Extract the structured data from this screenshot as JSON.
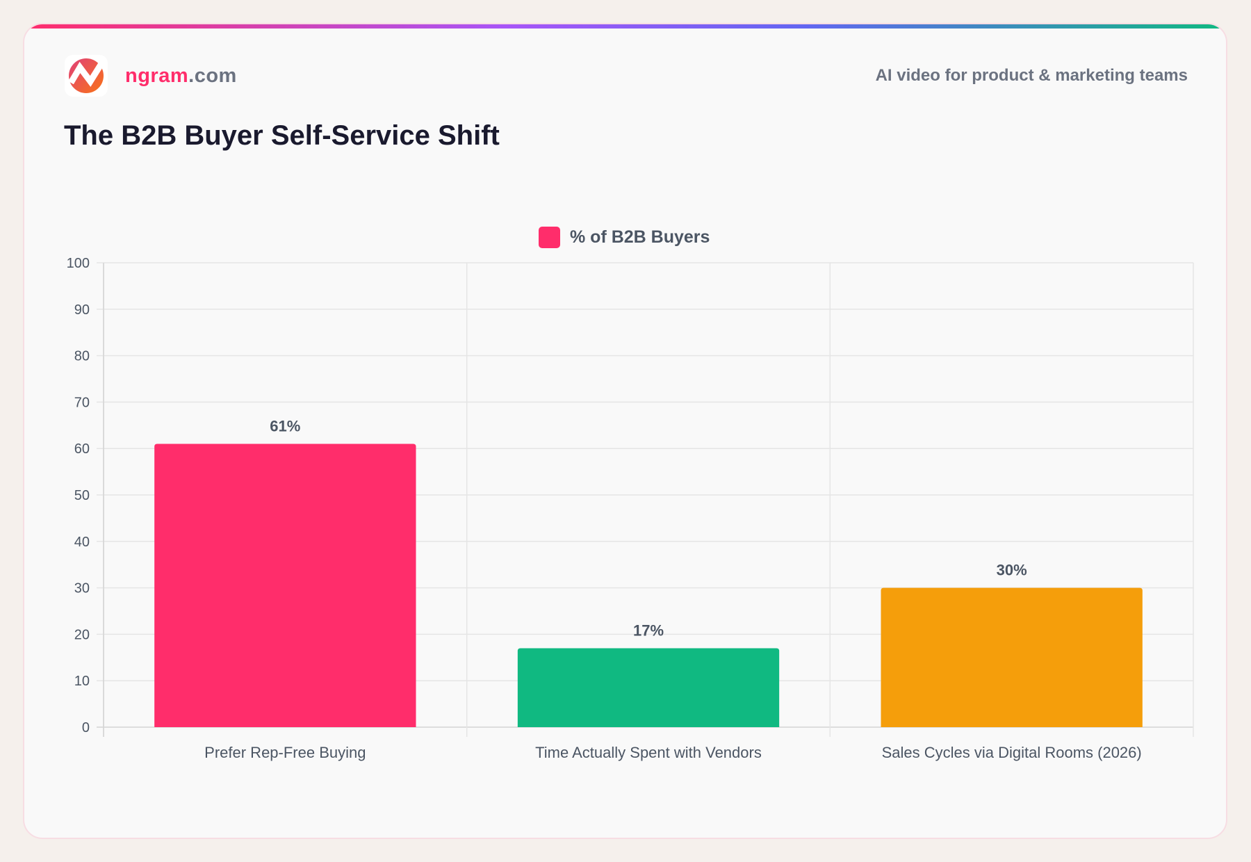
{
  "header": {
    "brand_main": "ngram",
    "brand_suffix": ".com",
    "tagline": "AI video for product & marketing teams",
    "title": "The B2B Buyer Self-Service Shift"
  },
  "chart_data": {
    "type": "bar",
    "categories": [
      "Prefer Rep-Free Buying",
      "Time Actually Spent with Vendors",
      "Sales Cycles via Digital Rooms (2026)"
    ],
    "series": [
      {
        "name": "% of B2B Buyers",
        "values": [
          61,
          17,
          30
        ]
      }
    ],
    "data_labels": [
      "61%",
      "17%",
      "30%"
    ],
    "bar_colors": [
      "#ff2d6b",
      "#10b981",
      "#f59e0b"
    ],
    "legend_color": "#ff2d6b",
    "ylim": [
      0,
      100
    ],
    "yticks": [
      0,
      10,
      20,
      30,
      40,
      50,
      60,
      70,
      80,
      90,
      100
    ],
    "grid": true,
    "legend_position": "top"
  }
}
